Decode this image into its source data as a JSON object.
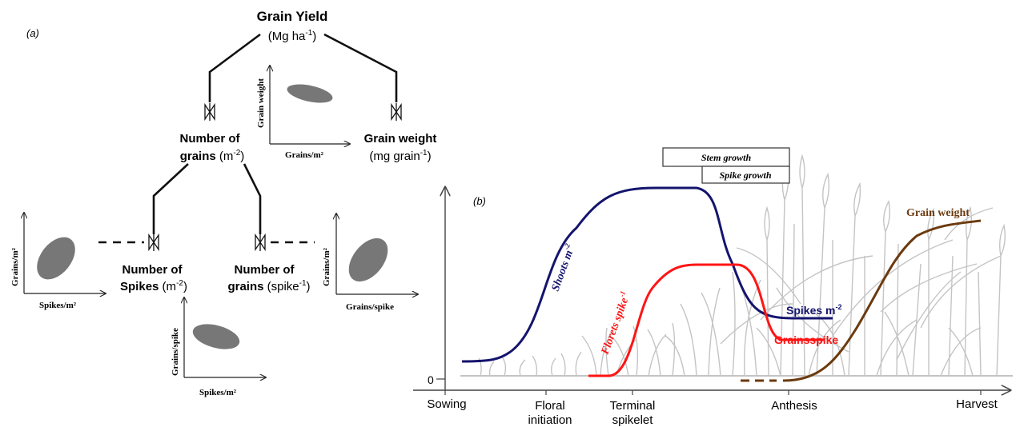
{
  "panel_a": {
    "label": "(a)",
    "grain_yield": {
      "title": "Grain Yield",
      "unit_main": "(Mg ha",
      "unit_exp": "-1",
      "unit_close": ")"
    },
    "number_of_grains_m2": {
      "line1": "Number of",
      "line2_bold": "grains",
      "line2_unit": " (m",
      "line2_exp": "-2",
      "line2_close": ")"
    },
    "grain_weight": {
      "line1": "Grain weight",
      "line2_unit": "(mg grain",
      "line2_exp": "-1",
      "line2_close": ")"
    },
    "number_of_spikes": {
      "line1": "Number of",
      "line2_bold": "Spikes",
      "line2_unit": " (m",
      "line2_exp": "-2",
      "line2_close": ")"
    },
    "number_of_grains_spike": {
      "line1": "Number of",
      "line2_bold": "grains",
      "line2_unit": " (spike",
      "line2_exp": "-1",
      "line2_close": ")"
    },
    "plots": {
      "grain_weight_vs_grains": {
        "xlabel": "Grains/m²",
        "ylabel": "Grain weight"
      },
      "grains_vs_spikes_left": {
        "xlabel": "Spikes/m²",
        "ylabel": "Grains/m²"
      },
      "grains_vs_grainsperspike": {
        "xlabel": "Grains/spike",
        "ylabel": "Grains/m²"
      },
      "grainsperspike_vs_spikes": {
        "xlabel": "Spikes/m²",
        "ylabel": "Grains/spike"
      }
    }
  },
  "panel_b": {
    "label": "(b)",
    "bars": {
      "stem": "Stem growth",
      "spike": "Spike growth"
    },
    "zero_label": "0",
    "x_ticks": {
      "sowing": "Sowing",
      "floral_1": "Floral",
      "floral_2": "initiation",
      "terminal_1": "Terminal",
      "terminal_2": "spikelet",
      "anthesis": "Anthesis",
      "harvest": "Harvest"
    },
    "curve_labels": {
      "shoots": "Shoots m",
      "shoots_exp": "-2",
      "florets": "Florets spike",
      "florets_exp": "-1",
      "spikes": "Spikes m",
      "spikes_exp": "-2",
      "grains_spike": "Grainsspike",
      "grain_weight": "Grain weight"
    },
    "colors": {
      "shoots": "#14146e",
      "florets": "#ff1414",
      "grain_weight": "#6b3a0e",
      "crop": "#c4c4c4"
    }
  }
}
